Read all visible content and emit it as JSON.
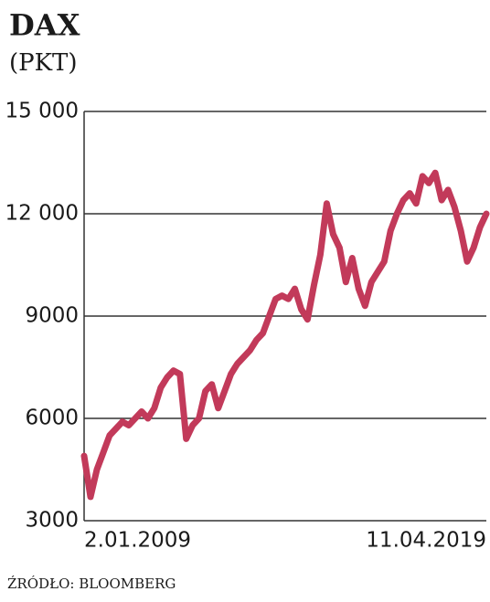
{
  "chart_data": {
    "type": "line",
    "title": "DAX",
    "subtitle": "(PKT)",
    "source": "ŹRÓDŁO: BLOOMBERG",
    "categories": [
      "2.01.2009",
      null,
      null,
      null,
      null,
      null,
      null,
      null,
      null,
      null,
      null,
      null,
      null,
      null,
      null,
      null,
      null,
      null,
      null,
      null,
      null,
      null,
      null,
      null,
      null,
      null,
      null,
      null,
      null,
      null,
      null,
      null,
      null,
      null,
      null,
      null,
      null,
      null,
      null,
      null,
      null,
      null,
      null,
      null,
      null,
      null,
      null,
      null,
      null,
      null,
      null,
      null,
      null,
      null,
      null,
      null,
      null,
      null,
      null,
      null,
      null,
      null,
      null,
      "11.04.2019"
    ],
    "values": [
      4900,
      3700,
      4500,
      5000,
      5500,
      5700,
      5900,
      5800,
      6000,
      6200,
      6000,
      6300,
      6900,
      7200,
      7400,
      7300,
      5400,
      5800,
      6000,
      6800,
      7000,
      6300,
      6800,
      7300,
      7600,
      7800,
      8000,
      8300,
      8500,
      9000,
      9500,
      9600,
      9500,
      9800,
      9200,
      8900,
      9900,
      10800,
      12300,
      11400,
      11000,
      10000,
      10700,
      9800,
      9300,
      10000,
      10300,
      10600,
      11500,
      12000,
      12400,
      12600,
      12300,
      13100,
      12900,
      13200,
      12400,
      12700,
      12200,
      11500,
      10600,
      11000,
      11600,
      12000
    ],
    "color": "#c23a5a",
    "ylim": [
      3000,
      15000
    ],
    "yticks": [
      3000,
      6000,
      9000,
      {
        "value": 12000,
        "label": "12 000"
      },
      {
        "value": 15000,
        "label": "15 000"
      }
    ],
    "grid": true
  }
}
